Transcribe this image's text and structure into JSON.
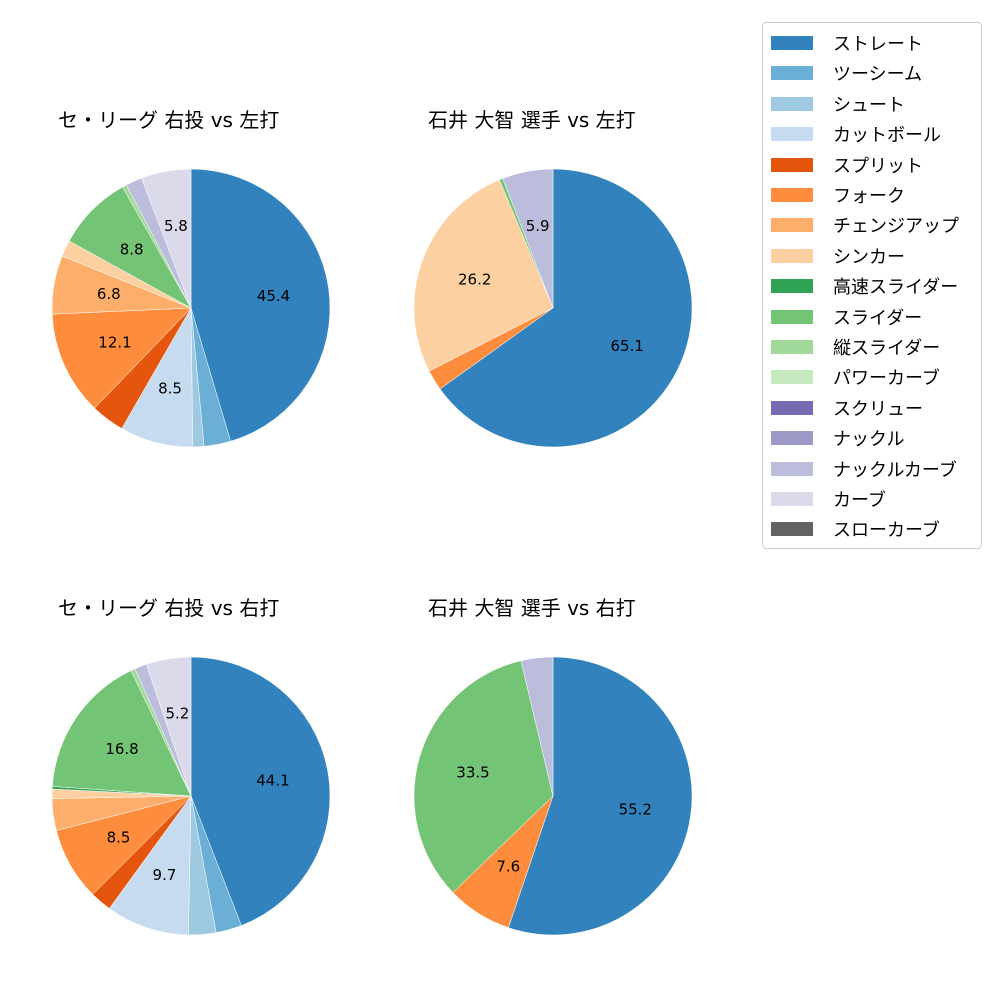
{
  "legend": {
    "items": [
      {
        "label": "ストレート",
        "color": "#3182bd"
      },
      {
        "label": "ツーシーム",
        "color": "#6baed6"
      },
      {
        "label": "シュート",
        "color": "#9ecae1"
      },
      {
        "label": "カットボール",
        "color": "#c6dbef"
      },
      {
        "label": "スプリット",
        "color": "#e6550d"
      },
      {
        "label": "フォーク",
        "color": "#fd8d3c"
      },
      {
        "label": "チェンジアップ",
        "color": "#fdae6b"
      },
      {
        "label": "シンカー",
        "color": "#fdd0a2"
      },
      {
        "label": "高速スライダー",
        "color": "#31a354"
      },
      {
        "label": "スライダー",
        "color": "#74c476"
      },
      {
        "label": "縦スライダー",
        "color": "#a1d99b"
      },
      {
        "label": "パワーカーブ",
        "color": "#c7e9c0"
      },
      {
        "label": "スクリュー",
        "color": "#756bb1"
      },
      {
        "label": "ナックル",
        "color": "#9e9ac8"
      },
      {
        "label": "ナックルカーブ",
        "color": "#bcbddc"
      },
      {
        "label": "カーブ",
        "color": "#dadaeb"
      },
      {
        "label": "スローカーブ",
        "color": "#636363"
      }
    ]
  },
  "chart_data": [
    {
      "type": "pie",
      "title": "セ・リーグ 右投 vs 左打",
      "categories": [
        "ストレート",
        "ツーシーム",
        "シュート",
        "カットボール",
        "スプリット",
        "フォーク",
        "チェンジアップ",
        "シンカー",
        "高速スライダー",
        "スライダー",
        "縦スライダー",
        "パワーカーブ",
        "スクリュー",
        "ナックル",
        "ナックルカーブ",
        "カーブ",
        "スローカーブ"
      ],
      "values": [
        45.4,
        3.1,
        1.3,
        8.5,
        3.9,
        12.1,
        6.8,
        1.9,
        0.0,
        8.8,
        0.5,
        0.0,
        0.0,
        0.0,
        1.9,
        5.8,
        0.0
      ],
      "labels_shown": [
        "45.4",
        "8.5",
        "12.1",
        "8.8"
      ]
    },
    {
      "type": "pie",
      "title": "石井 大智 選手 vs 左打",
      "categories": [
        "ストレート",
        "フォーク",
        "シンカー",
        "スライダー",
        "ナックルカーブ"
      ],
      "values": [
        65.1,
        2.4,
        26.2,
        0.4,
        5.9
      ],
      "labels_shown": [
        "65.1",
        "26.2",
        "5.9"
      ]
    },
    {
      "type": "pie",
      "title": "セ・リーグ 右投 vs 右打",
      "categories": [
        "ストレート",
        "ツーシーム",
        "シュート",
        "カットボール",
        "スプリット",
        "フォーク",
        "チェンジアップ",
        "シンカー",
        "高速スライダー",
        "スライダー",
        "縦スライダー",
        "パワーカーブ",
        "スクリュー",
        "ナックル",
        "ナックルカーブ",
        "カーブ",
        "スローカーブ"
      ],
      "values": [
        44.1,
        3.0,
        3.2,
        9.7,
        2.5,
        8.5,
        3.7,
        1.1,
        0.3,
        16.8,
        0.5,
        0.0,
        0.0,
        0.0,
        1.4,
        5.2,
        0.0
      ],
      "labels_shown": [
        "44.1",
        "9.7",
        "8.5",
        "16.8"
      ]
    },
    {
      "type": "pie",
      "title": "石井 大智 選手 vs 右打",
      "categories": [
        "ストレート",
        "フォーク",
        "スライダー",
        "ナックルカーブ"
      ],
      "values": [
        55.2,
        7.6,
        33.5,
        3.7
      ],
      "labels_shown": [
        "55.2",
        "7.6",
        "33.5"
      ]
    }
  ],
  "panels": [
    {
      "title": "セ・リーグ 右投 vs 左打"
    },
    {
      "title": "石井 大智 選手 vs 左打"
    },
    {
      "title": "セ・リーグ 右投 vs 右打"
    },
    {
      "title": "石井 大智 選手 vs 右打"
    }
  ]
}
